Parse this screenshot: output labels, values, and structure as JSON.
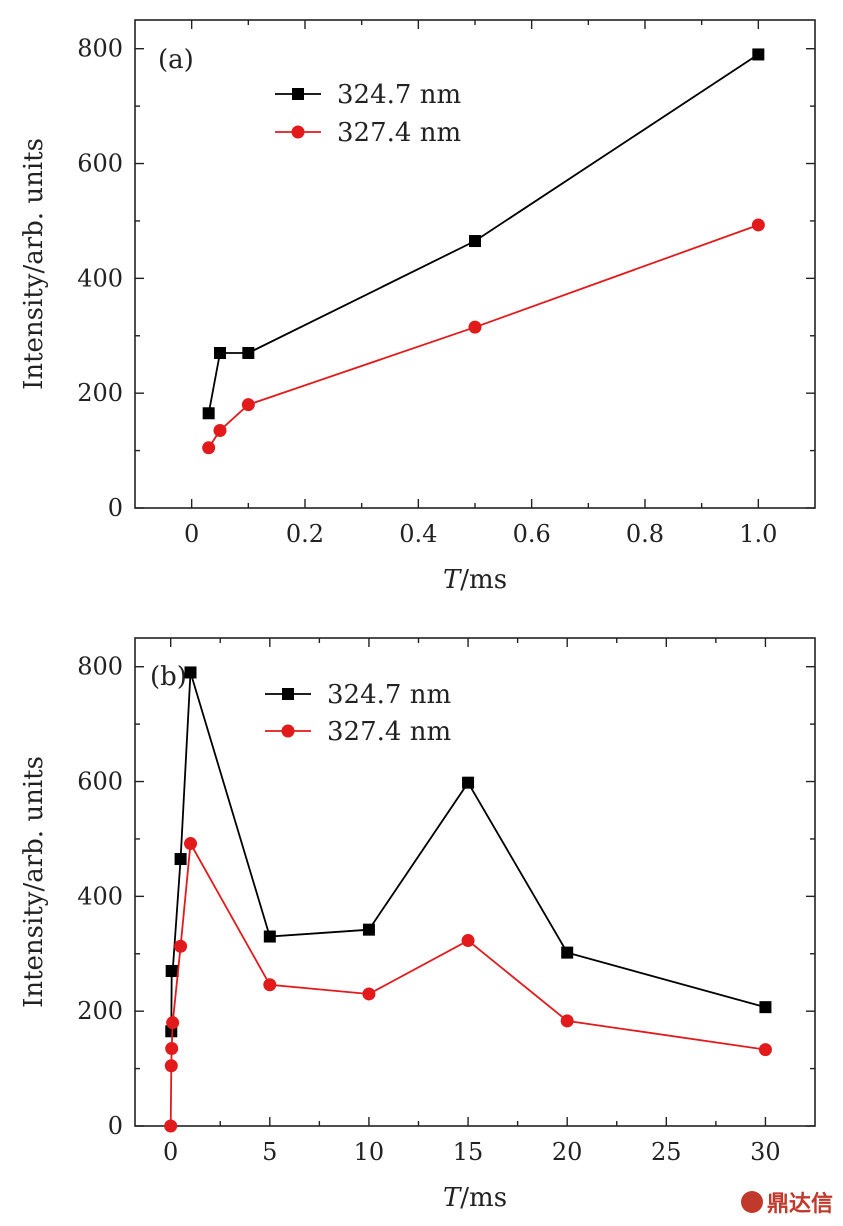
{
  "chart_data": [
    {
      "type": "line",
      "panel_label": "(a)",
      "xlabel_italic": "T",
      "xlabel_unit": "/ms",
      "ylabel": "Intensity/arb. units",
      "xlim": [
        -0.1,
        1.1
      ],
      "ylim": [
        0,
        850
      ],
      "xticks": [
        0,
        0.2,
        0.4,
        0.6,
        0.8,
        1.0
      ],
      "xtick_labels": [
        "0",
        "0.2",
        "0.4",
        "0.6",
        "0.8",
        "1.0"
      ],
      "yticks": [
        0,
        200,
        400,
        600,
        800
      ],
      "ytick_labels": [
        "0",
        "200",
        "400",
        "600",
        "800"
      ],
      "legend_position": "top-left",
      "series": [
        {
          "name": "324.7 nm",
          "color": "#000000",
          "marker": "square",
          "x": [
            0.03,
            0.05,
            0.1,
            0.5,
            1.0
          ],
          "y": [
            165,
            270,
            270,
            465,
            790
          ]
        },
        {
          "name": "327.4 nm",
          "color": "#e31a1c",
          "marker": "circle",
          "x": [
            0.03,
            0.05,
            0.1,
            0.5,
            1.0
          ],
          "y": [
            105,
            135,
            180,
            315,
            493
          ]
        }
      ]
    },
    {
      "type": "line",
      "panel_label": "(b)",
      "xlabel_italic": "T",
      "xlabel_unit": "/ms",
      "ylabel": "Intensity/arb. units",
      "xlim": [
        -1.8,
        32.5
      ],
      "ylim": [
        0,
        850
      ],
      "xticks": [
        0,
        5,
        10,
        15,
        20,
        25,
        30
      ],
      "xtick_labels": [
        "0",
        "5",
        "10",
        "15",
        "20",
        "25",
        "30"
      ],
      "yticks": [
        0,
        200,
        400,
        600,
        800
      ],
      "ytick_labels": [
        "0",
        "200",
        "400",
        "600",
        "800"
      ],
      "legend_position": "top-left",
      "series": [
        {
          "name": "324.7 nm",
          "color": "#000000",
          "marker": "square",
          "x": [
            0.03,
            0.05,
            0.1,
            0.5,
            1,
            5,
            10,
            15,
            20,
            30
          ],
          "y": [
            165,
            270,
            270,
            465,
            790,
            330,
            342,
            598,
            302,
            207
          ]
        },
        {
          "name": "327.4 nm",
          "color": "#e31a1c",
          "marker": "circle",
          "x": [
            0,
            0.03,
            0.05,
            0.1,
            0.5,
            1,
            5,
            10,
            15,
            20,
            30
          ],
          "y": [
            0,
            105,
            135,
            180,
            313,
            492,
            246,
            230,
            323,
            183,
            133
          ]
        }
      ]
    }
  ],
  "watermark": {
    "text": "鼎达信",
    "color": "#c0392b"
  }
}
